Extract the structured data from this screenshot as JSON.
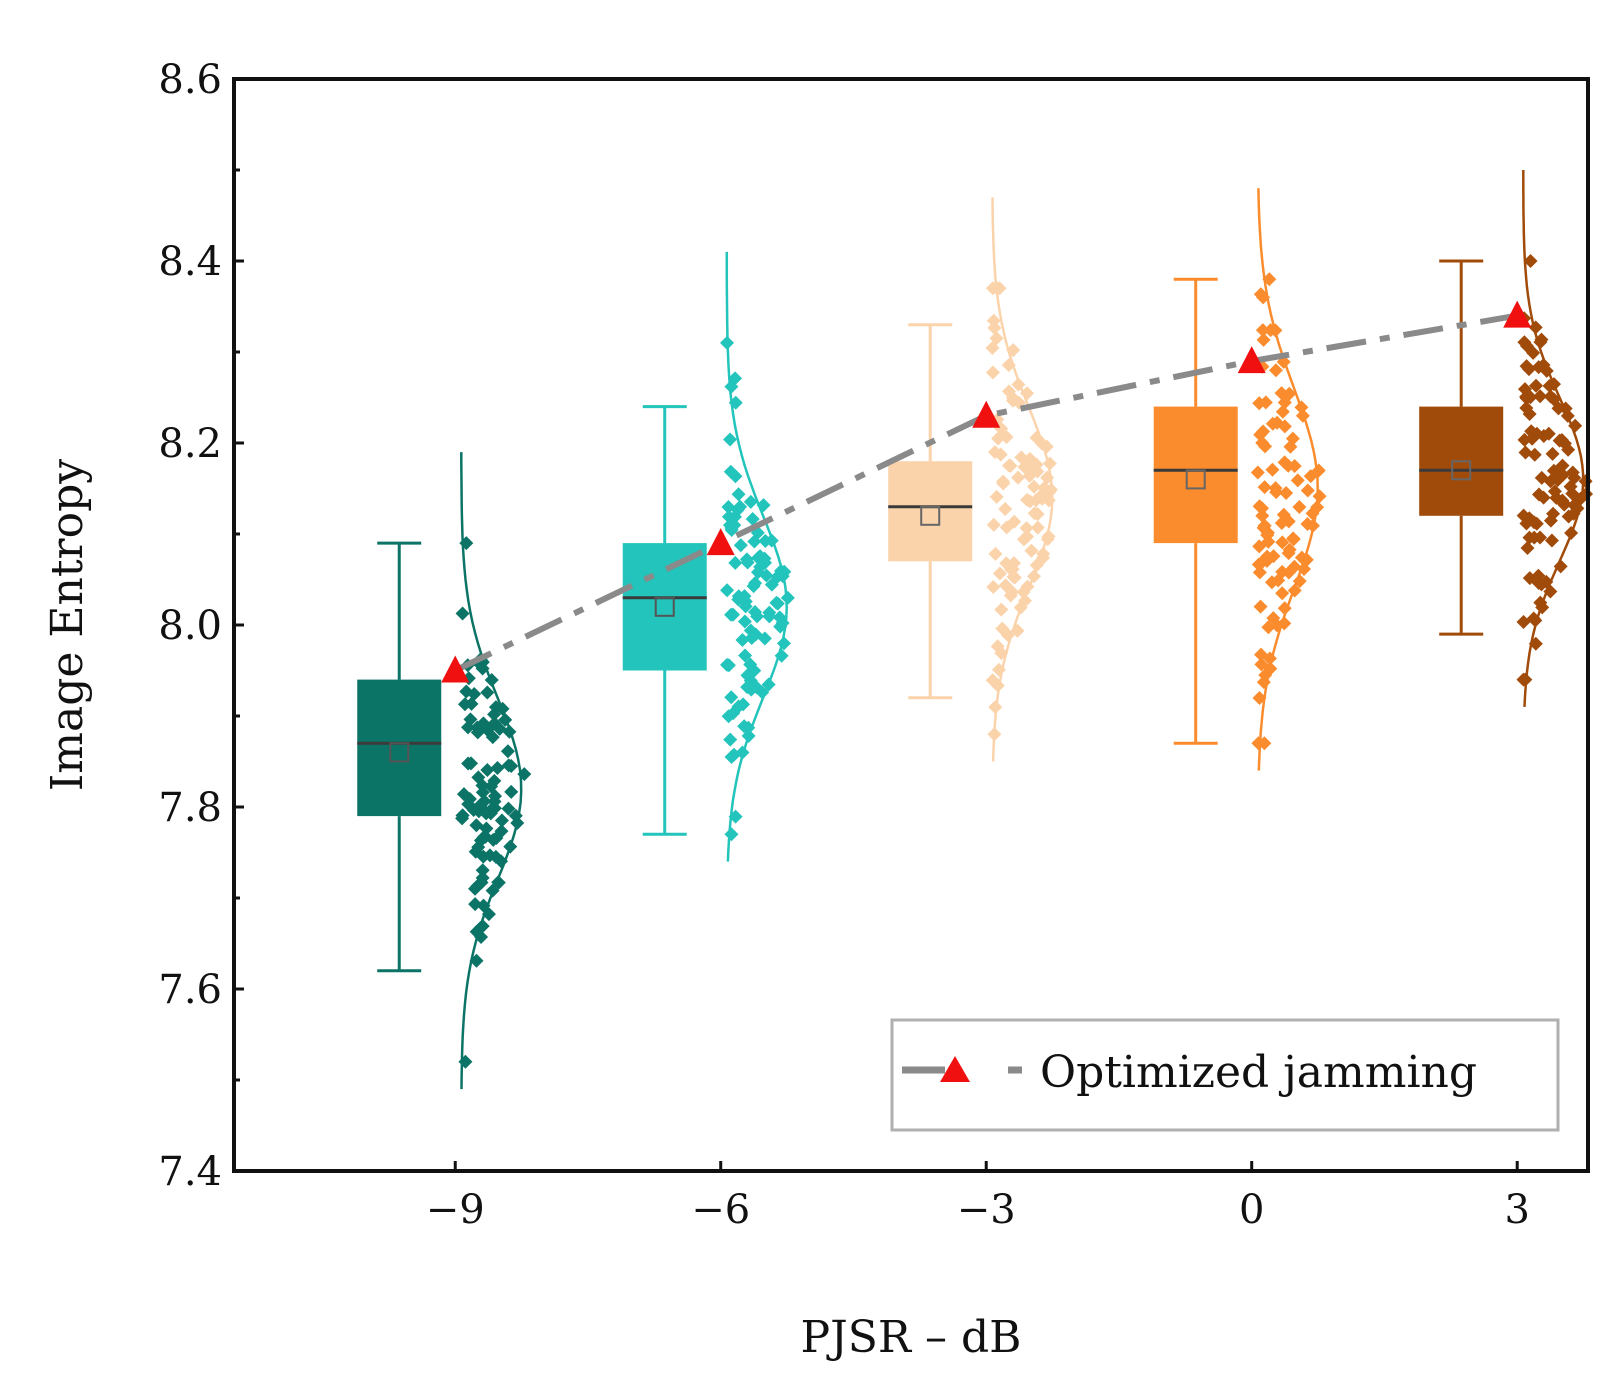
{
  "chart_data": {
    "type": "box",
    "xlabel": "PJSR – dB",
    "ylabel": "Image Entropy",
    "xlim": [
      -11.5,
      3.8
    ],
    "ylim": [
      7.4,
      8.6
    ],
    "yticks": [
      7.4,
      7.6,
      7.8,
      8.0,
      8.2,
      8.4,
      8.6
    ],
    "ytick_labels": [
      "7.4",
      "7.6",
      "7.8",
      "8.0",
      "8.2",
      "8.4",
      "8.6"
    ],
    "xticks": [
      -9,
      -6,
      -3,
      0,
      3
    ],
    "xtick_labels": [
      "−9",
      "−6",
      "−3",
      "0",
      "3"
    ],
    "groups": [
      {
        "x": -9,
        "color": "#0b7466",
        "whisker_low": 7.62,
        "q1": 7.79,
        "median": 7.87,
        "mean": 7.86,
        "q3": 7.94,
        "whisker_high": 8.09,
        "scatter_min": 7.52,
        "scatter_max": 8.09,
        "dist_mean": 7.82,
        "dist_sd": 0.1
      },
      {
        "x": -6,
        "color": "#22c4bb",
        "whisker_low": 7.77,
        "q1": 7.95,
        "median": 8.03,
        "mean": 8.02,
        "q3": 8.09,
        "whisker_high": 8.24,
        "scatter_min": 7.77,
        "scatter_max": 8.31,
        "dist_mean": 8.02,
        "dist_sd": 0.1
      },
      {
        "x": -3,
        "color": "#fbd3ab",
        "whisker_low": 7.92,
        "q1": 8.07,
        "median": 8.13,
        "mean": 8.12,
        "q3": 8.18,
        "whisker_high": 8.33,
        "scatter_min": 7.88,
        "scatter_max": 8.37,
        "dist_mean": 8.14,
        "dist_sd": 0.1
      },
      {
        "x": 0,
        "color": "#fb8c2e",
        "whisker_low": 7.87,
        "q1": 8.09,
        "median": 8.17,
        "mean": 8.16,
        "q3": 8.24,
        "whisker_high": 8.38,
        "scatter_min": 7.87,
        "scatter_max": 8.38,
        "dist_mean": 8.15,
        "dist_sd": 0.11
      },
      {
        "x": 3,
        "color": "#a14b0a",
        "whisker_low": 7.99,
        "q1": 8.12,
        "median": 8.17,
        "mean": 8.17,
        "q3": 8.24,
        "whisker_high": 8.4,
        "scatter_min": 7.94,
        "scatter_max": 8.4,
        "dist_mean": 8.16,
        "dist_sd": 0.09
      }
    ],
    "series": [
      {
        "name": "Optimized jamming",
        "x": [
          -9,
          -6,
          -3,
          0,
          3
        ],
        "values": [
          7.95,
          8.09,
          8.23,
          8.29,
          8.34
        ],
        "marker_color": "#f01010",
        "line_color": "#8a8a8a"
      }
    ],
    "legend": {
      "label": "Optimized jamming",
      "position": "bottom-right"
    }
  }
}
